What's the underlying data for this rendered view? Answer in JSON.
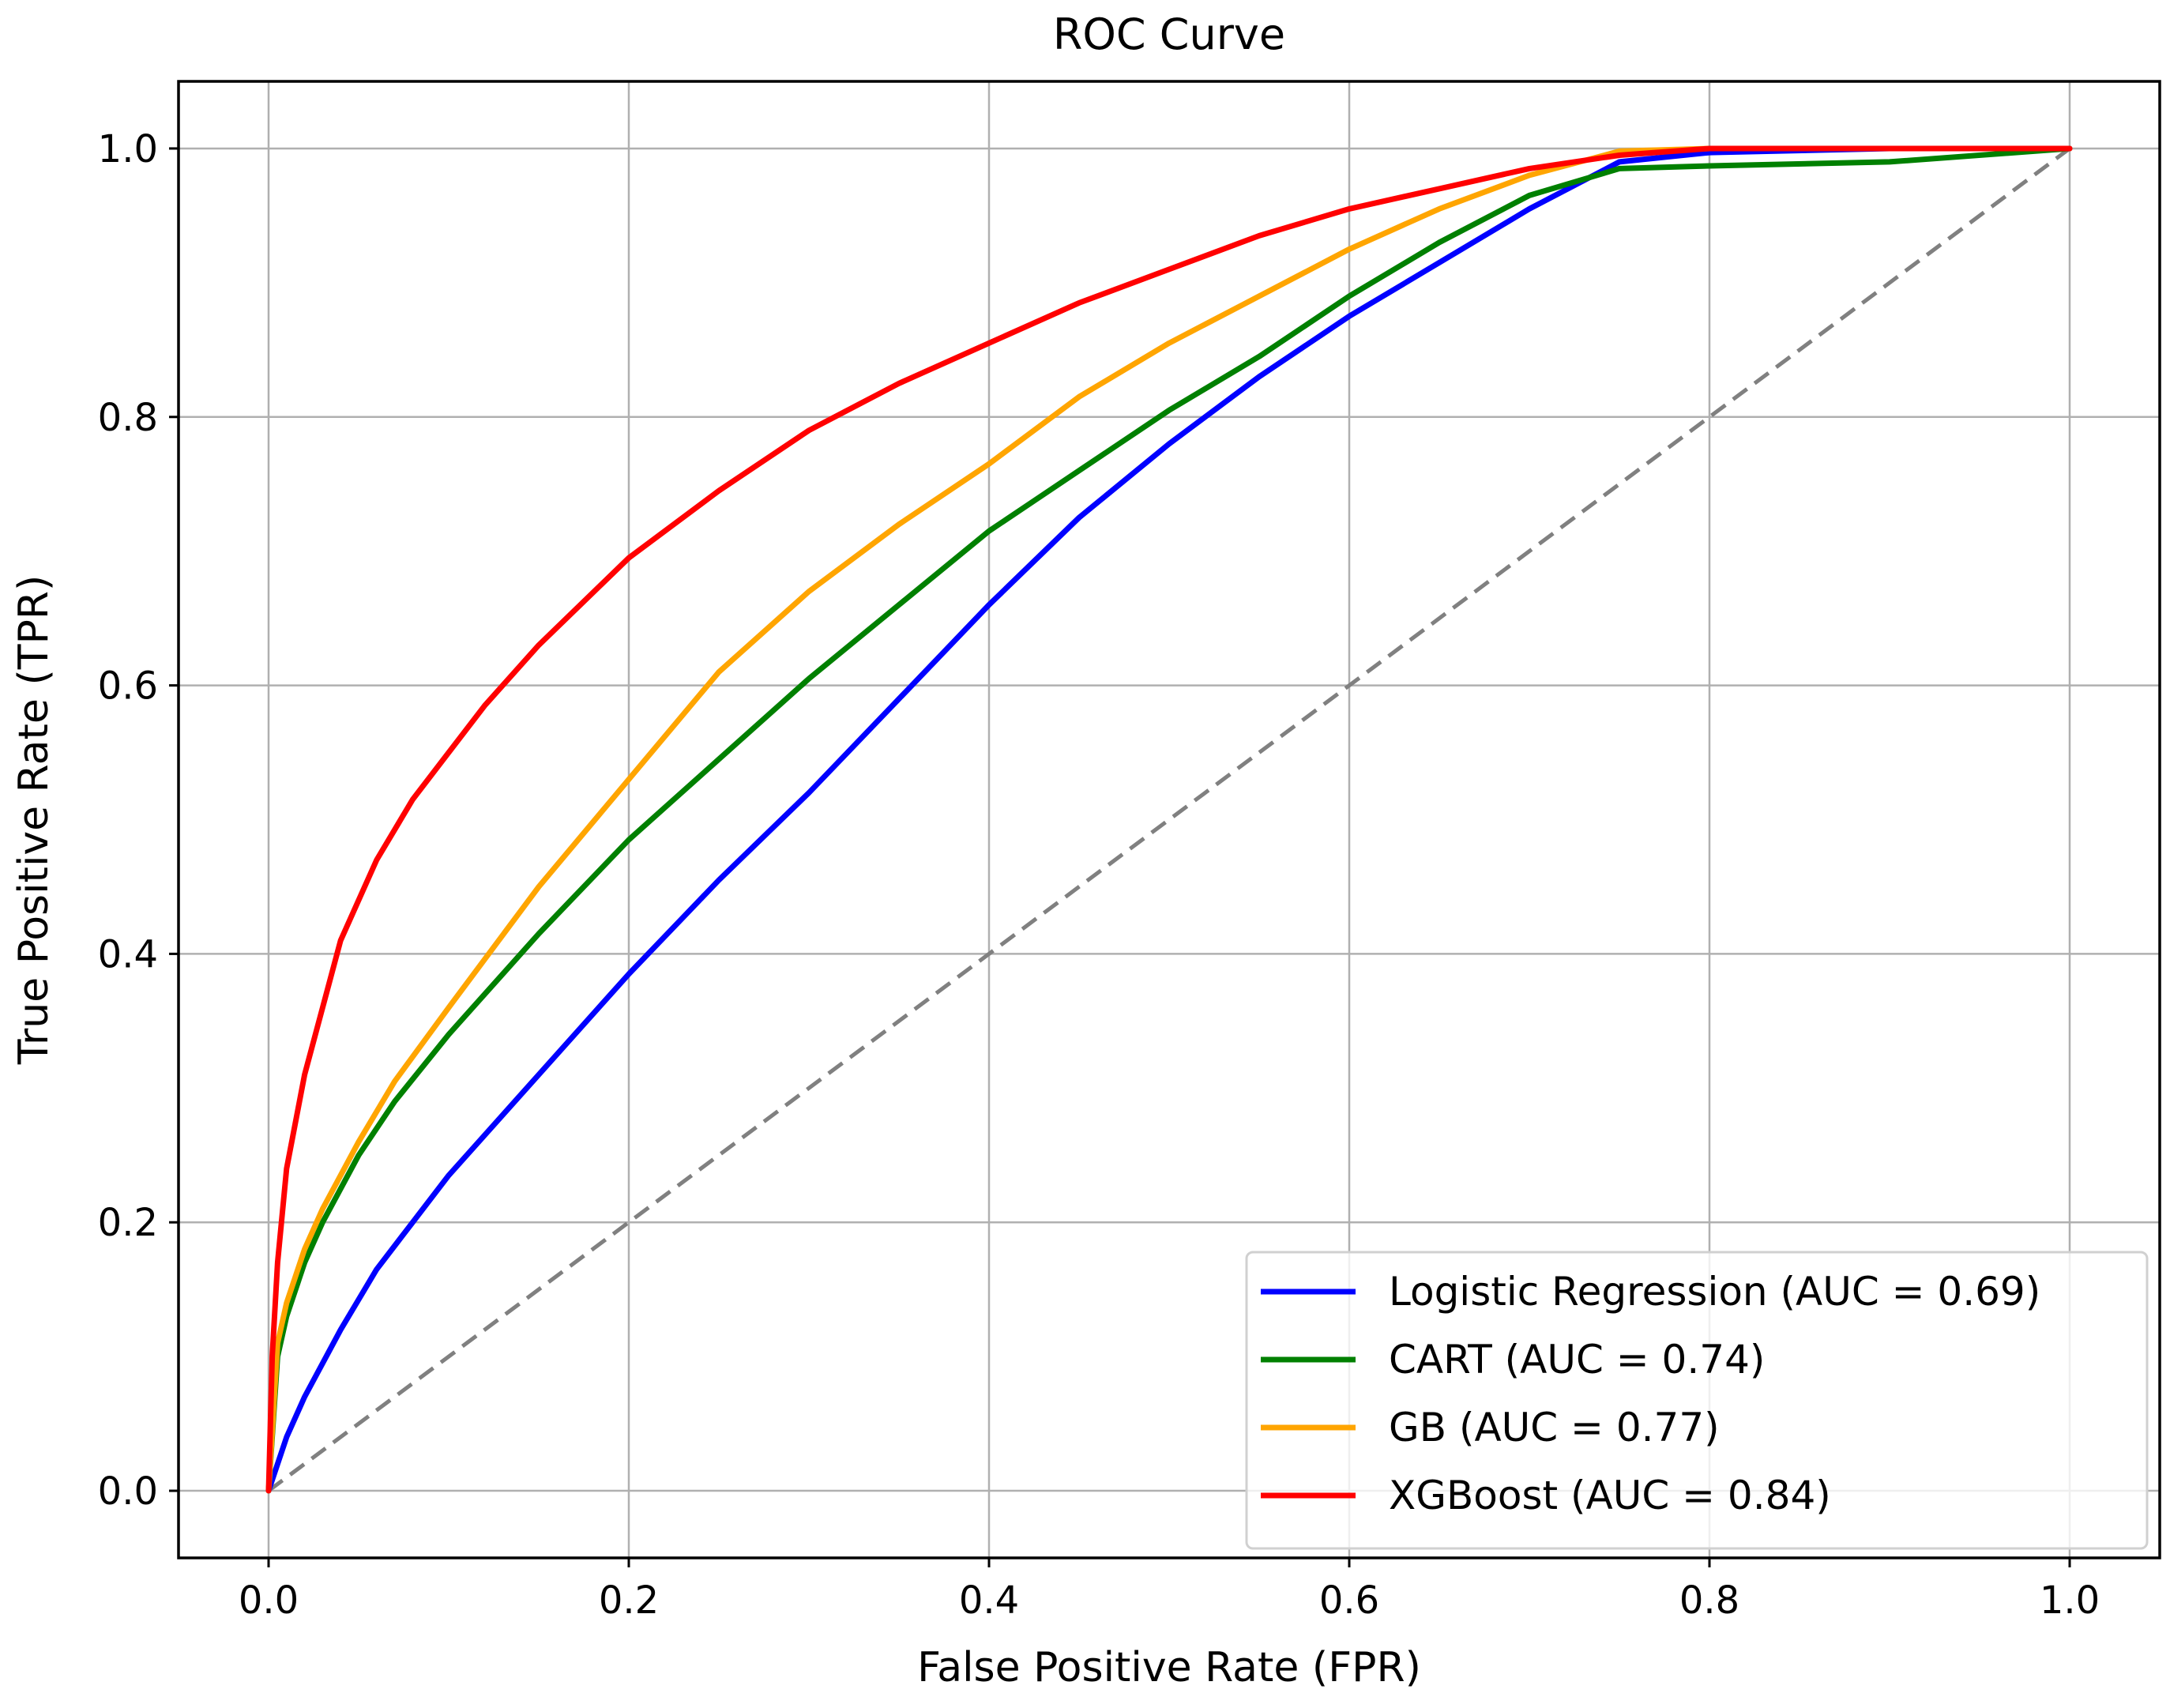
{
  "chart_data": {
    "type": "line",
    "title": "ROC Curve",
    "xlabel": "False Positive Rate (FPR)",
    "ylabel": "True Positive Rate (TPR)",
    "xlim": [
      -0.05,
      1.05
    ],
    "ylim": [
      -0.05,
      1.05
    ],
    "grid": true,
    "x_ticks": [
      0.0,
      0.2,
      0.4,
      0.6,
      0.8,
      1.0
    ],
    "y_ticks": [
      0.0,
      0.2,
      0.4,
      0.6,
      0.8,
      1.0
    ],
    "x_tick_labels": [
      "0.0",
      "0.2",
      "0.4",
      "0.6",
      "0.8",
      "1.0"
    ],
    "y_tick_labels": [
      "0.0",
      "0.2",
      "0.4",
      "0.6",
      "0.8",
      "1.0"
    ],
    "legend_position": "lower-right",
    "series": [
      {
        "name": "Logistic Regression",
        "label": "Logistic Regression (AUC = 0.69)",
        "auc": 0.69,
        "color": "#0000ff",
        "x": [
          0.0,
          0.01,
          0.02,
          0.04,
          0.06,
          0.08,
          0.1,
          0.12,
          0.15,
          0.2,
          0.25,
          0.3,
          0.35,
          0.4,
          0.45,
          0.5,
          0.55,
          0.6,
          0.65,
          0.7,
          0.75,
          0.8,
          0.9,
          1.0
        ],
        "y": [
          0.0,
          0.04,
          0.07,
          0.12,
          0.165,
          0.2,
          0.235,
          0.265,
          0.31,
          0.385,
          0.455,
          0.52,
          0.59,
          0.66,
          0.725,
          0.78,
          0.83,
          0.875,
          0.915,
          0.955,
          0.99,
          0.997,
          1.0,
          1.0
        ]
      },
      {
        "name": "CART",
        "label": "CART (AUC = 0.74)",
        "auc": 0.74,
        "color": "#008000",
        "x": [
          0.0,
          0.005,
          0.01,
          0.02,
          0.03,
          0.05,
          0.07,
          0.1,
          0.15,
          0.2,
          0.25,
          0.3,
          0.35,
          0.4,
          0.45,
          0.5,
          0.55,
          0.6,
          0.65,
          0.7,
          0.75,
          0.8,
          0.9,
          1.0
        ],
        "y": [
          0.0,
          0.1,
          0.13,
          0.17,
          0.2,
          0.25,
          0.29,
          0.34,
          0.415,
          0.485,
          0.545,
          0.605,
          0.66,
          0.715,
          0.76,
          0.805,
          0.845,
          0.89,
          0.93,
          0.965,
          0.985,
          0.987,
          0.99,
          1.0
        ]
      },
      {
        "name": "GB",
        "label": "GB (AUC = 0.77)",
        "auc": 0.77,
        "color": "#ffa500",
        "x": [
          0.0,
          0.005,
          0.01,
          0.02,
          0.03,
          0.05,
          0.07,
          0.1,
          0.15,
          0.2,
          0.25,
          0.3,
          0.35,
          0.4,
          0.45,
          0.5,
          0.55,
          0.6,
          0.65,
          0.7,
          0.75,
          0.8,
          0.9,
          1.0
        ],
        "y": [
          0.0,
          0.11,
          0.14,
          0.18,
          0.21,
          0.26,
          0.305,
          0.36,
          0.45,
          0.53,
          0.61,
          0.67,
          0.72,
          0.765,
          0.815,
          0.855,
          0.89,
          0.925,
          0.955,
          0.98,
          0.998,
          1.0,
          1.0,
          1.0
        ]
      },
      {
        "name": "XGBoost",
        "label": "XGBoost (AUC = 0.84)",
        "auc": 0.84,
        "color": "#ff0000",
        "x": [
          0.0,
          0.002,
          0.005,
          0.01,
          0.02,
          0.03,
          0.04,
          0.06,
          0.08,
          0.1,
          0.12,
          0.15,
          0.2,
          0.25,
          0.3,
          0.35,
          0.4,
          0.45,
          0.5,
          0.55,
          0.6,
          0.65,
          0.7,
          0.75,
          0.8,
          0.9,
          1.0
        ],
        "y": [
          0.0,
          0.1,
          0.17,
          0.24,
          0.31,
          0.36,
          0.41,
          0.47,
          0.515,
          0.55,
          0.585,
          0.63,
          0.695,
          0.745,
          0.79,
          0.825,
          0.855,
          0.885,
          0.91,
          0.935,
          0.955,
          0.97,
          0.985,
          0.995,
          1.0,
          1.0,
          1.0
        ]
      },
      {
        "name": "Random",
        "label": "",
        "color": "#808080",
        "dashed": true,
        "x": [
          0.0,
          1.0
        ],
        "y": [
          0.0,
          1.0
        ]
      }
    ]
  }
}
